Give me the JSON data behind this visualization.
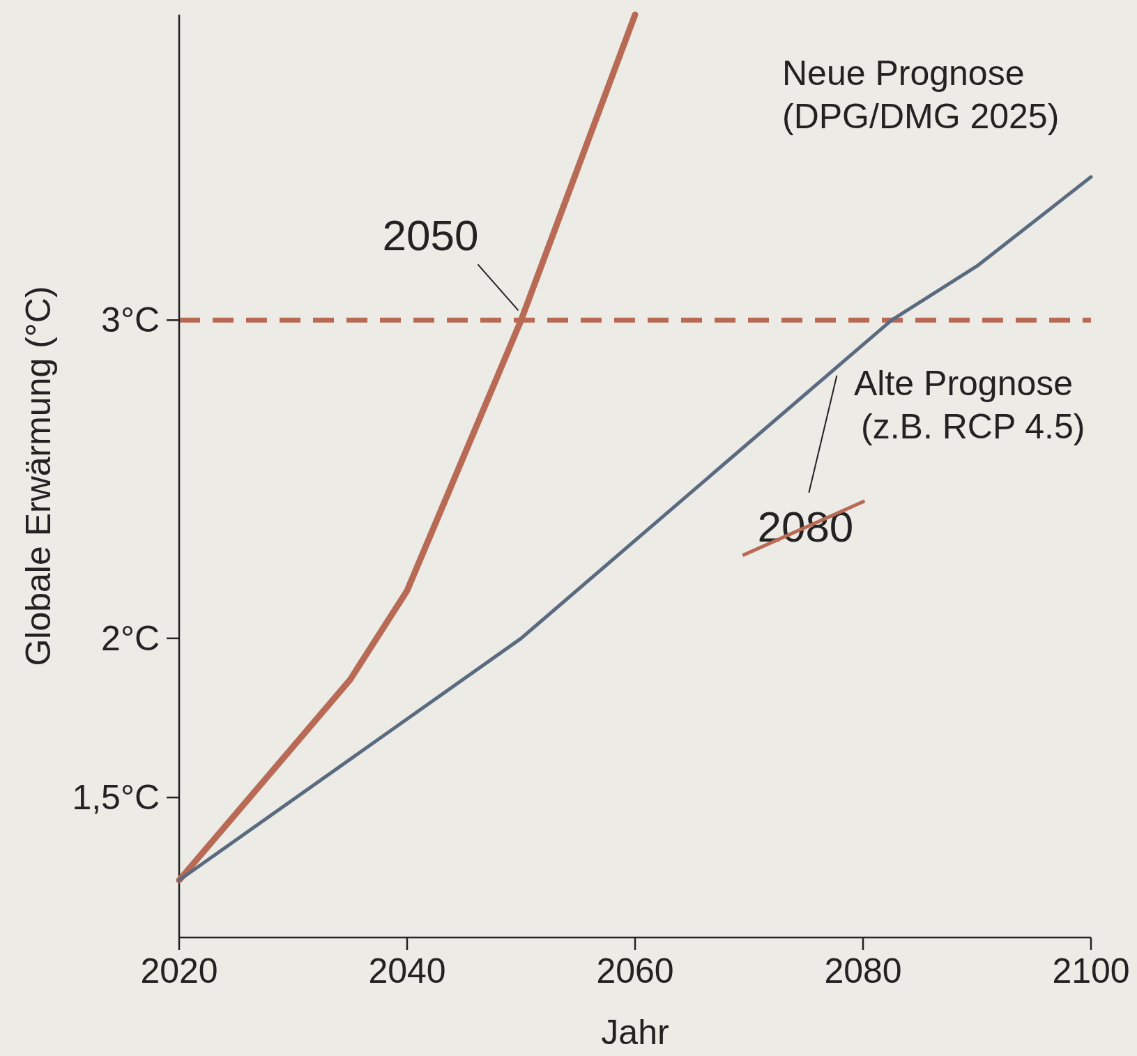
{
  "chart_data": {
    "type": "line",
    "xlabel": "Jahr",
    "ylabel": "Globale Erwärmung (°C)",
    "xlim": [
      2020,
      2100
    ],
    "xticks": [
      2020,
      2040,
      2060,
      2080,
      2100
    ],
    "ylim": [
      1.06,
      3.96
    ],
    "yticks": [
      {
        "value": 1.5,
        "label": "1,5°C"
      },
      {
        "value": 2,
        "label": "2°C"
      },
      {
        "value": 3,
        "label": "3°C"
      }
    ],
    "series": [
      {
        "color": "#b86a55",
        "x": [
          2020,
          2035,
          2040,
          2050,
          2060
        ],
        "values": [
          1.24,
          1.87,
          2.15,
          3.0,
          3.96
        ]
      },
      {
        "color": "#5a6b80",
        "x": [
          2020,
          2050,
          2082.5,
          2090,
          2100
        ],
        "values": [
          1.24,
          2.0,
          3.0,
          3.17,
          3.45
        ]
      }
    ],
    "ref_lines": [
      {
        "axis": "y",
        "value": 3,
        "color": "#b86a55",
        "line_style": "dashed"
      }
    ],
    "annotations": [
      "2050",
      "2080",
      "Neue Prognose\n(DPG/DMG 2025)",
      "Alte Prognose\n(z.B. RCP 4.5)"
    ],
    "line_style": "solid"
  }
}
